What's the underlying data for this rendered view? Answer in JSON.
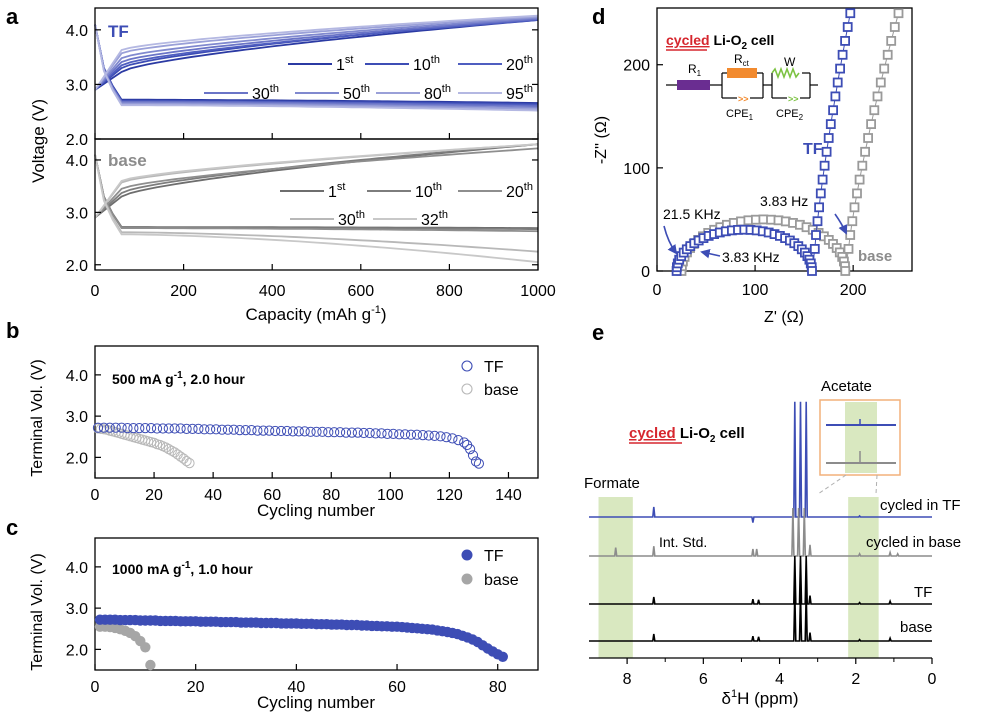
{
  "colors": {
    "tf": "#3d4db5",
    "base": "#8c8c8c",
    "black": "#000000",
    "green": "#d9e8c0",
    "red": "#d6262e",
    "purple": "#6a2d91",
    "orange": "#f28a2e",
    "greenline": "#7cc242"
  },
  "chart_data": [
    {
      "id": "a",
      "panel_label": "a",
      "type": "line",
      "title": "",
      "xlabel": "Capacity (mAh g-1)",
      "xlabel_main": "Capacity (mAh g",
      "xlabel_sup": "-1",
      "xlabel_end": ")",
      "ylabel": "Voltage (V)",
      "xlim": [
        0,
        1000
      ],
      "xticks": [
        "0",
        "200",
        "400",
        "600",
        "800",
        "1000"
      ],
      "xtick_values": [
        0,
        200,
        400,
        600,
        800,
        1000
      ],
      "top": {
        "label": "TF",
        "ylim": [
          2.0,
          4.4
        ],
        "yticks": [
          "2.0",
          "3.0",
          "4.0"
        ],
        "ytick_values": [
          2.0,
          3.0,
          4.0
        ],
        "legend": [
          {
            "n": "1",
            "sup": "st"
          },
          {
            "n": "10",
            "sup": "th"
          },
          {
            "n": "20",
            "sup": "th"
          },
          {
            "n": "30",
            "sup": "th"
          },
          {
            "n": "50",
            "sup": "th"
          },
          {
            "n": "80",
            "sup": "th"
          },
          {
            "n": "95",
            "sup": "th"
          }
        ],
        "series": [
          {
            "name": "1st",
            "charge_end": 4.18,
            "charge_mid": 3.68,
            "discharge_plateau": 2.72,
            "discharge_end": 2.66
          },
          {
            "name": "10th",
            "charge_end": 4.2,
            "charge_mid": 3.75,
            "discharge_plateau": 2.7,
            "discharge_end": 2.64
          },
          {
            "name": "20th",
            "charge_end": 4.18,
            "charge_mid": 3.8,
            "discharge_plateau": 2.69,
            "discharge_end": 2.62
          },
          {
            "name": "30th",
            "charge_end": 4.2,
            "charge_mid": 3.86,
            "discharge_plateau": 2.68,
            "discharge_end": 2.6
          },
          {
            "name": "50th",
            "charge_end": 4.22,
            "charge_mid": 3.93,
            "discharge_plateau": 2.66,
            "discharge_end": 2.57
          },
          {
            "name": "80th",
            "charge_end": 4.24,
            "charge_mid": 4.02,
            "discharge_plateau": 2.64,
            "discharge_end": 2.55
          },
          {
            "name": "95th",
            "charge_end": 4.26,
            "charge_mid": 4.08,
            "discharge_plateau": 2.62,
            "discharge_end": 2.52
          }
        ]
      },
      "bottom": {
        "label": "base",
        "ylim": [
          1.9,
          4.4
        ],
        "yticks": [
          "2.0",
          "3.0",
          "4.0"
        ],
        "ytick_values": [
          2.0,
          3.0,
          4.0
        ],
        "legend": [
          {
            "n": "1",
            "sup": "st"
          },
          {
            "n": "10",
            "sup": "th"
          },
          {
            "n": "20",
            "sup": "th"
          },
          {
            "n": "30",
            "sup": "th"
          },
          {
            "n": "32",
            "sup": "th"
          }
        ],
        "series": [
          {
            "name": "1st",
            "charge_end": 4.3,
            "charge_mid": 3.75,
            "discharge_plateau": 2.72,
            "discharge_end": 2.7
          },
          {
            "name": "10th",
            "charge_end": 4.3,
            "charge_mid": 3.82,
            "discharge_plateau": 2.71,
            "discharge_end": 2.68
          },
          {
            "name": "20th",
            "charge_end": 4.22,
            "charge_mid": 3.9,
            "discharge_plateau": 2.7,
            "discharge_end": 2.64
          },
          {
            "name": "30th",
            "charge_end": 4.3,
            "charge_mid": 4.02,
            "discharge_plateau": 2.62,
            "discharge_end": 2.25
          },
          {
            "name": "32th",
            "charge_end": 4.3,
            "charge_mid": 4.05,
            "discharge_plateau": 2.58,
            "discharge_end": 2.05
          }
        ]
      }
    },
    {
      "id": "b",
      "panel_label": "b",
      "type": "scatter",
      "title": "500 mA g-1, 2.0 hour",
      "title_parts": {
        "main": "500 mA g",
        "sup": "-1",
        "rest": ", 2.0 hour"
      },
      "xlabel": "Cycling number",
      "ylabel": "Terminal Vol. (V)",
      "xlim": [
        0,
        150
      ],
      "ylim": [
        1.5,
        4.7
      ],
      "xticks": [
        "0",
        "20",
        "40",
        "60",
        "80",
        "100",
        "120",
        "140"
      ],
      "xtick_values": [
        0,
        20,
        40,
        60,
        80,
        100,
        120,
        140
      ],
      "yticks": [
        "2.0",
        "3.0",
        "4.0"
      ],
      "ytick_values": [
        2.0,
        3.0,
        4.0
      ],
      "legend": [
        "TF",
        "base"
      ],
      "series": [
        {
          "name": "TF",
          "marker": "open-circle",
          "x": [
            1,
            3,
            5,
            7,
            9,
            11,
            13,
            15,
            17,
            19,
            21,
            23,
            25,
            27,
            29,
            31,
            33,
            35,
            37,
            39,
            41,
            43,
            45,
            47,
            49,
            51,
            53,
            55,
            57,
            59,
            61,
            63,
            65,
            67,
            69,
            71,
            73,
            75,
            77,
            79,
            81,
            83,
            85,
            87,
            89,
            91,
            93,
            95,
            97,
            99,
            101,
            103,
            105,
            107,
            109,
            111,
            113,
            115,
            117,
            119,
            121,
            123,
            125,
            126,
            127,
            128,
            129,
            130
          ],
          "y": [
            2.72,
            2.72,
            2.72,
            2.72,
            2.72,
            2.71,
            2.71,
            2.71,
            2.71,
            2.71,
            2.7,
            2.7,
            2.7,
            2.7,
            2.7,
            2.69,
            2.69,
            2.69,
            2.68,
            2.68,
            2.68,
            2.67,
            2.67,
            2.67,
            2.66,
            2.66,
            2.66,
            2.65,
            2.65,
            2.65,
            2.64,
            2.64,
            2.64,
            2.63,
            2.63,
            2.63,
            2.62,
            2.62,
            2.62,
            2.61,
            2.61,
            2.61,
            2.6,
            2.6,
            2.6,
            2.59,
            2.59,
            2.58,
            2.58,
            2.57,
            2.57,
            2.56,
            2.56,
            2.55,
            2.55,
            2.54,
            2.53,
            2.52,
            2.51,
            2.49,
            2.46,
            2.42,
            2.36,
            2.3,
            2.2,
            2.05,
            1.9,
            1.85
          ]
        },
        {
          "name": "base",
          "marker": "open-circle",
          "x": [
            1,
            2,
            3,
            4,
            5,
            6,
            7,
            8,
            9,
            10,
            11,
            12,
            13,
            14,
            15,
            16,
            17,
            18,
            19,
            20,
            21,
            22,
            23,
            24,
            25,
            26,
            27,
            28,
            29,
            30,
            31,
            32
          ],
          "y": [
            2.7,
            2.69,
            2.68,
            2.67,
            2.65,
            2.63,
            2.61,
            2.59,
            2.57,
            2.55,
            2.53,
            2.51,
            2.49,
            2.47,
            2.45,
            2.43,
            2.41,
            2.39,
            2.37,
            2.35,
            2.32,
            2.3,
            2.27,
            2.24,
            2.2,
            2.16,
            2.12,
            2.07,
            2.02,
            1.97,
            1.91,
            1.86
          ]
        }
      ]
    },
    {
      "id": "c",
      "panel_label": "c",
      "type": "scatter",
      "title": "1000 mA g-1, 1.0 hour",
      "title_parts": {
        "main": "1000 mA g",
        "sup": "-1",
        "rest": ", 1.0 hour"
      },
      "xlabel": "Cycling number",
      "ylabel": "Terminal Vol. (V)",
      "xlim": [
        0,
        88
      ],
      "ylim": [
        1.5,
        4.7
      ],
      "xticks": [
        "0",
        "20",
        "40",
        "60",
        "80"
      ],
      "xtick_values": [
        0,
        20,
        40,
        60,
        80
      ],
      "yticks": [
        "2.0",
        "3.0",
        "4.0"
      ],
      "ytick_values": [
        2.0,
        3.0,
        4.0
      ],
      "legend": [
        "TF",
        "base"
      ],
      "series": [
        {
          "name": "TF",
          "marker": "filled-circle",
          "x": [
            1,
            2,
            3,
            4,
            5,
            6,
            7,
            8,
            9,
            10,
            11,
            12,
            13,
            14,
            15,
            16,
            17,
            18,
            19,
            20,
            21,
            22,
            23,
            24,
            25,
            26,
            27,
            28,
            29,
            30,
            31,
            32,
            33,
            34,
            35,
            36,
            37,
            38,
            39,
            40,
            41,
            42,
            43,
            44,
            45,
            46,
            47,
            48,
            49,
            50,
            51,
            52,
            53,
            54,
            55,
            56,
            57,
            58,
            59,
            60,
            61,
            62,
            63,
            64,
            65,
            66,
            67,
            68,
            69,
            70,
            71,
            72,
            73,
            74,
            75,
            76,
            77,
            78,
            79,
            80,
            81
          ],
          "y": [
            2.72,
            2.72,
            2.72,
            2.72,
            2.71,
            2.71,
            2.71,
            2.71,
            2.7,
            2.7,
            2.7,
            2.7,
            2.69,
            2.69,
            2.69,
            2.69,
            2.68,
            2.68,
            2.68,
            2.68,
            2.67,
            2.67,
            2.67,
            2.67,
            2.66,
            2.66,
            2.66,
            2.66,
            2.65,
            2.65,
            2.65,
            2.65,
            2.64,
            2.64,
            2.64,
            2.64,
            2.63,
            2.63,
            2.63,
            2.63,
            2.62,
            2.62,
            2.62,
            2.61,
            2.61,
            2.61,
            2.6,
            2.6,
            2.6,
            2.59,
            2.59,
            2.59,
            2.58,
            2.58,
            2.57,
            2.57,
            2.56,
            2.56,
            2.55,
            2.55,
            2.54,
            2.53,
            2.52,
            2.51,
            2.5,
            2.49,
            2.48,
            2.46,
            2.44,
            2.42,
            2.4,
            2.37,
            2.33,
            2.29,
            2.24,
            2.18,
            2.1,
            2.02,
            1.95,
            1.88,
            1.82
          ]
        },
        {
          "name": "base",
          "marker": "filled-circle",
          "x": [
            1,
            2,
            3,
            4,
            5,
            6,
            7,
            8,
            9,
            10,
            11
          ],
          "y": [
            2.55,
            2.55,
            2.54,
            2.52,
            2.49,
            2.45,
            2.4,
            2.32,
            2.2,
            2.05,
            1.62
          ]
        }
      ]
    },
    {
      "id": "d",
      "panel_label": "d",
      "type": "scatter",
      "title": "cycled Li-O2 cell",
      "title_parts": {
        "red": "cycled",
        "rest": " Li-O",
        "sub": "2",
        "end": " cell"
      },
      "xlabel": "Z' (Ω)",
      "ylabel": "-Z'' (Ω)",
      "xlim": [
        0,
        260
      ],
      "ylim": [
        0,
        255
      ],
      "xticks": [
        "0",
        "100",
        "200"
      ],
      "xtick_values": [
        0,
        100,
        200
      ],
      "yticks": [
        "0",
        "100",
        "200"
      ],
      "ytick_values": [
        0,
        100,
        200
      ],
      "circuit": {
        "r1": "R",
        "r1_sub": "1",
        "rct": "R",
        "rct_sub": "ct",
        "w": "W",
        "cpe1": "CPE",
        "cpe1_sub": "1",
        "cpe2": "CPE",
        "cpe2_sub": "2"
      },
      "annotations": [
        {
          "text": "21.5 KHz"
        },
        {
          "text": "3.83 KHz"
        },
        {
          "text": "3.83 Hz"
        },
        {
          "text": "TF"
        },
        {
          "text": "base"
        }
      ],
      "series": [
        {
          "name": "TF",
          "marker": "open-square",
          "x_start": 20,
          "arc_end": 158,
          "arc_height": 40,
          "tail_top": 250,
          "tail_x_end": 197
        },
        {
          "name": "base",
          "marker": "open-square",
          "x_start": 25,
          "arc_end": 192,
          "arc_height": 50,
          "tail_top": 250,
          "tail_x_end": 247
        }
      ]
    },
    {
      "id": "e",
      "panel_label": "e",
      "type": "line",
      "title": "cycled Li-O2 cell",
      "title_parts": {
        "red": "cycled",
        "rest": " Li-O",
        "sub": "2",
        "end": " cell"
      },
      "xlabel": "δ1H (ppm)",
      "xlabel_parts": {
        "d": "δ",
        "sup": "1",
        "rest": "H (ppm)"
      },
      "xlim": [
        9,
        0
      ],
      "xticks": [
        "8",
        "6",
        "4",
        "2",
        "0"
      ],
      "xtick_values": [
        8,
        6,
        4,
        2,
        0
      ],
      "regions": [
        {
          "label": "Formate",
          "from": 8.75,
          "to": 7.85
        },
        {
          "label": "Acetate",
          "from": 2.2,
          "to": 1.4
        }
      ],
      "annotations": [
        {
          "text": "Int. Std."
        },
        {
          "text": "Acetate"
        },
        {
          "text": "Formate"
        }
      ],
      "series": [
        {
          "name": "cycled in TF",
          "color": "tf",
          "peaks": [
            [
              7.3,
              0.9
            ],
            [
              4.7,
              -0.5
            ],
            [
              3.6,
              9
            ],
            [
              3.45,
              9
            ],
            [
              3.3,
              9
            ],
            [
              1.9,
              0.1
            ]
          ]
        },
        {
          "name": "cycled in base",
          "color": "base",
          "peaks": [
            [
              8.3,
              0.6
            ],
            [
              7.3,
              0.7
            ],
            [
              4.7,
              0.5
            ],
            [
              4.6,
              0.5
            ],
            [
              3.65,
              3
            ],
            [
              3.5,
              3
            ],
            [
              3.35,
              3
            ],
            [
              3.2,
              0.8
            ],
            [
              1.9,
              0.15
            ],
            [
              1.1,
              0.25
            ],
            [
              0.9,
              0.15
            ]
          ]
        },
        {
          "name": "TF",
          "color": "black",
          "peaks": [
            [
              7.3,
              0.5
            ],
            [
              4.7,
              0.35
            ],
            [
              4.55,
              0.3
            ],
            [
              3.6,
              3
            ],
            [
              3.45,
              3
            ],
            [
              3.3,
              3
            ],
            [
              3.2,
              0.6
            ],
            [
              1.9,
              0.1
            ],
            [
              1.1,
              0.2
            ]
          ]
        },
        {
          "name": "base",
          "color": "black",
          "peaks": [
            [
              7.3,
              0.5
            ],
            [
              4.7,
              0.35
            ],
            [
              4.55,
              0.3
            ],
            [
              3.6,
              3
            ],
            [
              3.45,
              3
            ],
            [
              3.3,
              3
            ],
            [
              3.2,
              0.6
            ],
            [
              1.9,
              0.1
            ],
            [
              1.1,
              0.2
            ]
          ]
        }
      ]
    }
  ]
}
